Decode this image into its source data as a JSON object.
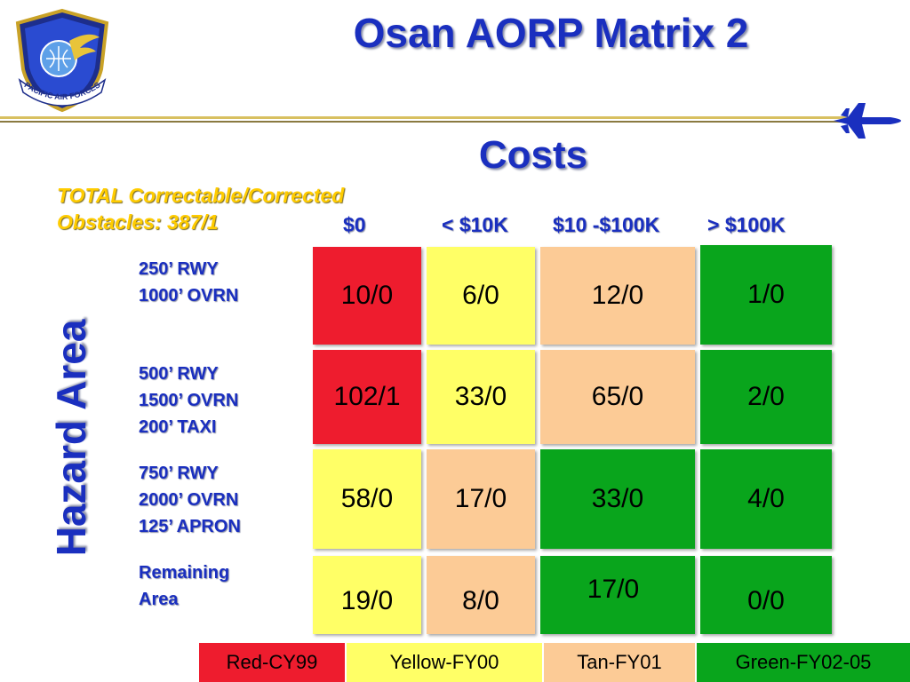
{
  "title": "Osan AORP Matrix 2",
  "subtitle": "Costs",
  "logo": {
    "icon": "pacific-air-forces-emblem-icon",
    "text": "PACIFIC AIR FORCES"
  },
  "decoration": {
    "icon": "jet-icon"
  },
  "total_label": {
    "line1": "TOTAL Correctable/Corrected",
    "line2": "Obstacles: 387/1"
  },
  "axis_label": "Hazard Area",
  "columns": [
    "$0",
    "< $10K",
    "$10 -$100K",
    "> $100K"
  ],
  "rows": [
    {
      "lines": [
        "250’ RWY",
        "1000’ OVRN"
      ],
      "cells": [
        "10/0",
        "6/0",
        "12/0",
        "1/0"
      ]
    },
    {
      "lines": [
        "500’ RWY",
        "1500’ OVRN",
        "200’ TAXI"
      ],
      "cells": [
        "102/1",
        "33/0",
        "65/0",
        "2/0"
      ]
    },
    {
      "lines": [
        "750’ RWY",
        "2000’ OVRN",
        "125’ APRON"
      ],
      "cells": [
        "58/0",
        "17/0",
        "33/0",
        "4/0"
      ]
    },
    {
      "lines": [
        "Remaining",
        "Area"
      ],
      "cells": [
        "19/0",
        "8/0",
        "17/0",
        "0/0"
      ]
    }
  ],
  "legend": [
    {
      "label": "Red-CY99",
      "color": "#ee1c2e"
    },
    {
      "label": "Yellow-FY00",
      "color": "#ffff66"
    },
    {
      "label": "Tan-FY01",
      "color": "#fccb96"
    },
    {
      "label": "Green-FY02-05",
      "color": "#09a51c"
    }
  ]
}
